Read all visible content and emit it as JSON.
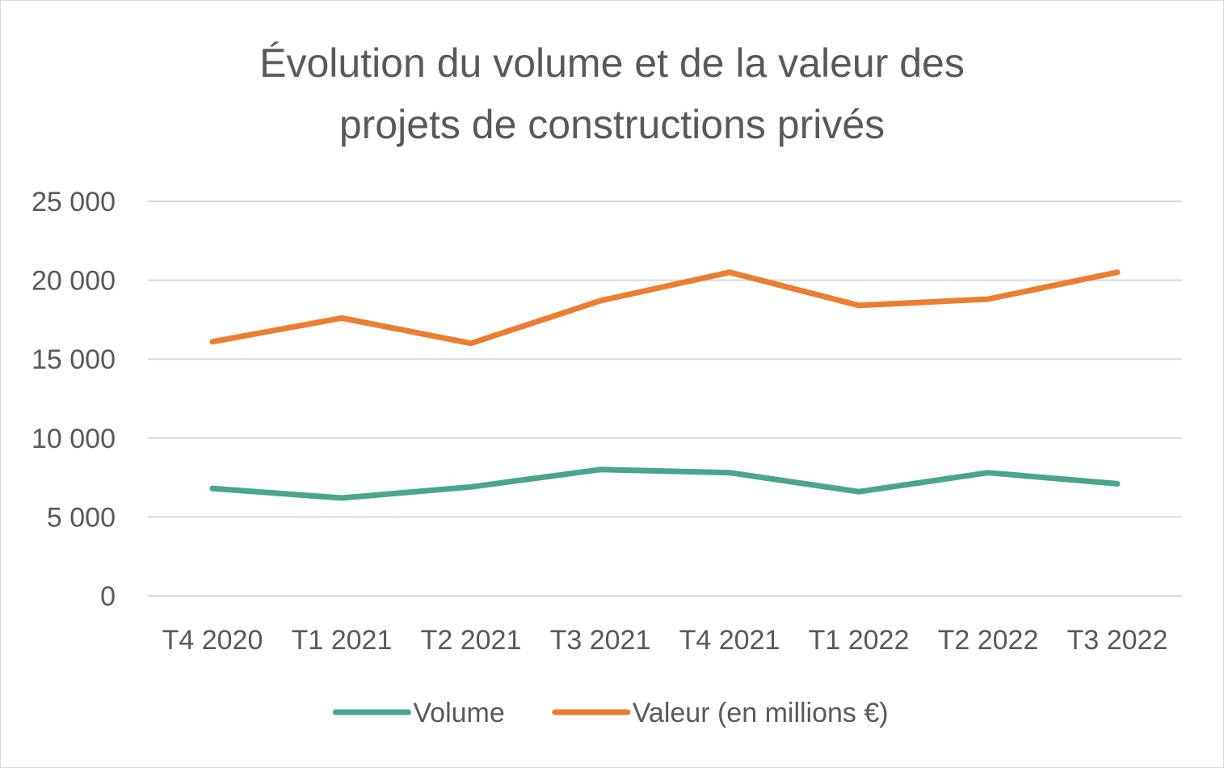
{
  "chart_data": {
    "type": "line",
    "title_lines": [
      "Évolution du volume et de la valeur des",
      "projets de constructions privés"
    ],
    "categories": [
      "T4 2020",
      "T1 2021",
      "T2 2021",
      "T3 2021",
      "T4 2021",
      "T1 2022",
      "T2 2022",
      "T3 2022"
    ],
    "series": [
      {
        "name": "Volume",
        "color": "#4aa58e",
        "values": [
          6800,
          6200,
          6900,
          8000,
          7800,
          6600,
          7800,
          7100
        ]
      },
      {
        "name": "Valeur (en millions €)",
        "color": "#ed7d31",
        "values": [
          16100,
          17600,
          16000,
          18700,
          20500,
          18400,
          18800,
          20500
        ]
      }
    ],
    "ylim": [
      0,
      25000
    ],
    "y_ticks": [
      0,
      5000,
      10000,
      15000,
      20000,
      25000
    ],
    "y_tick_labels": [
      "0",
      "5 000",
      "10 000",
      "15 000",
      "20 000",
      "25 000"
    ],
    "grid": true,
    "legend_position": "bottom",
    "xlabel": "",
    "ylabel": ""
  }
}
